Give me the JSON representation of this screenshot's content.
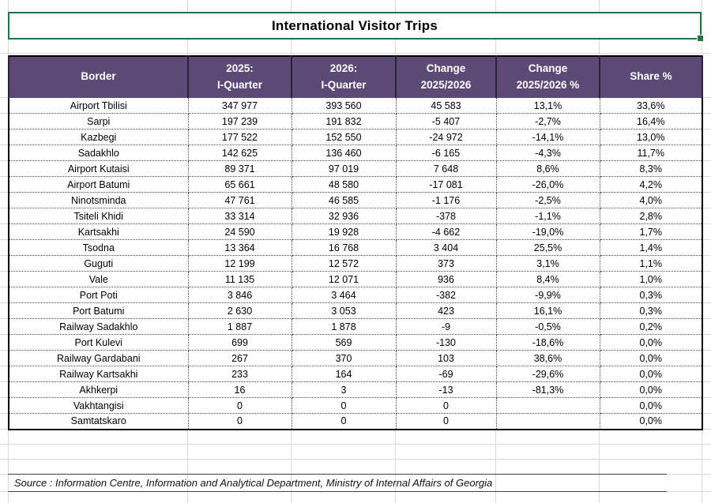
{
  "title": "International Visitor Trips",
  "colors": {
    "header_bg": "#5b4a75",
    "header_text": "#ffffff",
    "selection_green": "#217346",
    "gridline": "#d9d9d9"
  },
  "table": {
    "columns": [
      {
        "id": "border",
        "label_lines": [
          "Border"
        ]
      },
      {
        "id": "q1_2025",
        "label_lines": [
          "2025:",
          "I-Quarter"
        ]
      },
      {
        "id": "q1_2026",
        "label_lines": [
          "2026:",
          "I-Quarter"
        ]
      },
      {
        "id": "change",
        "label_lines": [
          "Change",
          "2025/2026"
        ]
      },
      {
        "id": "change_pct",
        "label_lines": [
          "Change",
          "2025/2026 %"
        ]
      },
      {
        "id": "share_pct",
        "label_lines": [
          "Share %"
        ]
      }
    ],
    "rows": [
      {
        "border": "Airport Tbilisi",
        "q1_2025": "347 977",
        "q1_2026": "393 560",
        "change": "45 583",
        "change_pct": "13,1%",
        "share_pct": "33,6%"
      },
      {
        "border": "Sarpi",
        "q1_2025": "197 239",
        "q1_2026": "191 832",
        "change": "-5 407",
        "change_pct": "-2,7%",
        "share_pct": "16,4%"
      },
      {
        "border": "Kazbegi",
        "q1_2025": "177 522",
        "q1_2026": "152 550",
        "change": "-24 972",
        "change_pct": "-14,1%",
        "share_pct": "13,0%"
      },
      {
        "border": "Sadakhlo",
        "q1_2025": "142 625",
        "q1_2026": "136 460",
        "change": "-6 165",
        "change_pct": "-4,3%",
        "share_pct": "11,7%"
      },
      {
        "border": "Airport Kutaisi",
        "q1_2025": "89 371",
        "q1_2026": "97 019",
        "change": "7 648",
        "change_pct": "8,6%",
        "share_pct": "8,3%"
      },
      {
        "border": "Airport Batumi",
        "q1_2025": "65 661",
        "q1_2026": "48 580",
        "change": "-17 081",
        "change_pct": "-26,0%",
        "share_pct": "4,2%"
      },
      {
        "border": "Ninotsminda",
        "q1_2025": "47 761",
        "q1_2026": "46 585",
        "change": "-1 176",
        "change_pct": "-2,5%",
        "share_pct": "4,0%"
      },
      {
        "border": "Tsiteli Khidi",
        "q1_2025": "33 314",
        "q1_2026": "32 936",
        "change": "-378",
        "change_pct": "-1,1%",
        "share_pct": "2,8%"
      },
      {
        "border": "Kartsakhi",
        "q1_2025": "24 590",
        "q1_2026": "19 928",
        "change": "-4 662",
        "change_pct": "-19,0%",
        "share_pct": "1,7%"
      },
      {
        "border": "Tsodna",
        "q1_2025": "13 364",
        "q1_2026": "16 768",
        "change": "3 404",
        "change_pct": "25,5%",
        "share_pct": "1,4%"
      },
      {
        "border": "Guguti",
        "q1_2025": "12 199",
        "q1_2026": "12 572",
        "change": "373",
        "change_pct": "3,1%",
        "share_pct": "1,1%"
      },
      {
        "border": "Vale",
        "q1_2025": "11 135",
        "q1_2026": "12 071",
        "change": "936",
        "change_pct": "8,4%",
        "share_pct": "1,0%"
      },
      {
        "border": "Port Poti",
        "q1_2025": "3 846",
        "q1_2026": "3 464",
        "change": "-382",
        "change_pct": "-9,9%",
        "share_pct": "0,3%"
      },
      {
        "border": "Port Batumi",
        "q1_2025": "2 630",
        "q1_2026": "3 053",
        "change": "423",
        "change_pct": "16,1%",
        "share_pct": "0,3%"
      },
      {
        "border": "Railway Sadakhlo",
        "q1_2025": "1 887",
        "q1_2026": "1 878",
        "change": "-9",
        "change_pct": "-0,5%",
        "share_pct": "0,2%"
      },
      {
        "border": "Port Kulevi",
        "q1_2025": "699",
        "q1_2026": "569",
        "change": "-130",
        "change_pct": "-18,6%",
        "share_pct": "0,0%"
      },
      {
        "border": "Railway Gardabani",
        "q1_2025": "267",
        "q1_2026": "370",
        "change": "103",
        "change_pct": "38,6%",
        "share_pct": "0,0%"
      },
      {
        "border": "Railway  Kartsakhi",
        "q1_2025": "233",
        "q1_2026": "164",
        "change": "-69",
        "change_pct": "-29,6%",
        "share_pct": "0,0%"
      },
      {
        "border": "Akhkerpi",
        "q1_2025": "16",
        "q1_2026": "3",
        "change": "-13",
        "change_pct": "-81,3%",
        "share_pct": "0,0%"
      },
      {
        "border": "Vakhtangisi",
        "q1_2025": "0",
        "q1_2026": "0",
        "change": "0",
        "change_pct": "",
        "share_pct": "0,0%"
      },
      {
        "border": "Samtatskaro",
        "q1_2025": "0",
        "q1_2026": "0",
        "change": "0",
        "change_pct": "",
        "share_pct": "0,0%"
      }
    ]
  },
  "source_note": "Source : Information Centre, Information and Analytical Department, Ministry of Internal Affairs of Georgia"
}
